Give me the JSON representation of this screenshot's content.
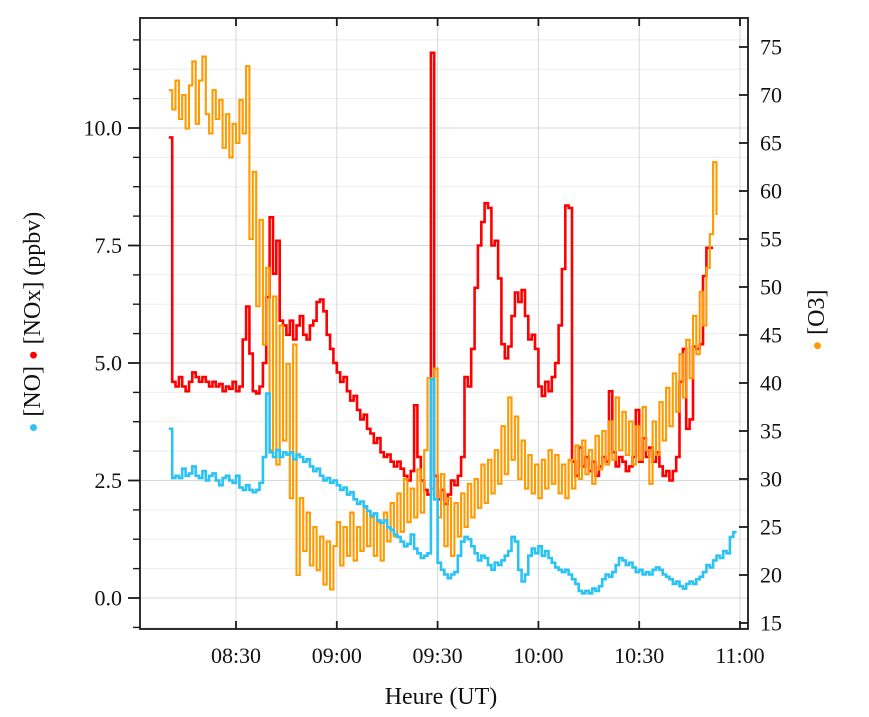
{
  "labels": {
    "xlabel": "Heure (UT)",
    "dot": "●",
    "left_no_part": " [NO] ",
    "left_nox_unit_part": " [NOx] (ppbv)",
    "right_o3_part": " [O3]"
  },
  "colors": {
    "no_cyan": "#2BC3F3",
    "nox_red": "#FF0000",
    "o3_orange": "#FF9A00",
    "grid_minor": "#EDEDED",
    "grid_major": "#D8D8D8",
    "frame": "#1A1A1A",
    "text": "#111111",
    "background": "#FFFFFF"
  },
  "chart_data": {
    "type": "line",
    "step_mode": "post",
    "title": "",
    "xlabel": "Heure (UT)",
    "ylabel_left": "[NO] [NOx] (ppbv)",
    "ylabel_right": "[O3]",
    "grid": true,
    "x_axis": {
      "range_minutes": [
        481.43,
        662.38
      ],
      "tick_minutes": [
        510,
        540,
        570,
        600,
        630,
        660
      ],
      "tick_labels": [
        "08:30",
        "09:00",
        "09:30",
        "10:00",
        "10:30",
        "11:00"
      ]
    },
    "left_axis": {
      "range": [
        -0.66,
        12.34
      ],
      "ticks": [
        0,
        2.5,
        5,
        7.5,
        10
      ],
      "tick_labels": [
        "0.0",
        "2.5",
        "5.0",
        "7.5",
        "10.0"
      ],
      "minor_step": 0.625
    },
    "right_axis": {
      "range": [
        14.375,
        78.02
      ],
      "ticks": [
        15,
        20,
        25,
        30,
        35,
        40,
        45,
        50,
        55,
        60,
        65,
        70,
        75
      ],
      "tick_labels": [
        "15",
        "20",
        "25",
        "30",
        "35",
        "40",
        "45",
        "50",
        "55",
        "60",
        "65",
        "70",
        "75"
      ]
    },
    "x_start": "08:10",
    "x_step_minutes": 1,
    "n_points": 169,
    "series": [
      {
        "name": "[NOx]",
        "axis": "left",
        "color": "#FF0000",
        "line_width": 2.6,
        "values": [
          9.8,
          4.6,
          4.5,
          4.7,
          4.5,
          4.4,
          4.6,
          4.8,
          4.7,
          4.6,
          4.7,
          4.6,
          4.5,
          4.6,
          4.5,
          4.55,
          4.4,
          4.5,
          4.45,
          4.6,
          4.4,
          4.5,
          5.5,
          6.2,
          5.2,
          4.4,
          4.35,
          4.5,
          5.0,
          6.4,
          8.1,
          6.9,
          7.6,
          5.9,
          5.8,
          5.6,
          5.9,
          5.5,
          5.8,
          6.0,
          5.6,
          5.5,
          5.8,
          5.9,
          6.3,
          6.35,
          6.1,
          5.6,
          5.3,
          5.0,
          4.8,
          4.6,
          4.7,
          4.4,
          4.2,
          4.3,
          4.0,
          3.8,
          3.9,
          3.6,
          3.5,
          3.3,
          3.4,
          3.1,
          3.0,
          3.05,
          2.9,
          2.8,
          2.9,
          2.75,
          2.6,
          2.5,
          2.7,
          4.1,
          3.0,
          2.5,
          2.3,
          2.2,
          11.6,
          2.6,
          2.1,
          2.3,
          2.0,
          2.2,
          2.5,
          2.4,
          2.6,
          3.0,
          4.7,
          4.5,
          5.3,
          6.6,
          7.5,
          8.0,
          8.4,
          8.3,
          7.5,
          7.6,
          6.8,
          5.4,
          5.1,
          5.35,
          6.0,
          6.5,
          6.3,
          6.55,
          6.0,
          5.5,
          5.6,
          5.3,
          4.5,
          4.3,
          4.6,
          4.4,
          4.7,
          5.0,
          5.8,
          7.0,
          8.35,
          8.3,
          2.9,
          2.6,
          3.2,
          2.8,
          3.0,
          2.7,
          2.9,
          2.6,
          2.8,
          3.0,
          2.9,
          4.4,
          3.1,
          2.8,
          3.0,
          2.9,
          2.7,
          2.8,
          3.0,
          4.0,
          2.9,
          3.4,
          3.0,
          3.2,
          2.9,
          3.1,
          2.8,
          2.6,
          2.7,
          2.5,
          2.7,
          3.0,
          4.6,
          5.3,
          3.6,
          3.8,
          5.35,
          5.3,
          5.4,
          6.85,
          7.45,
          7.45,
          7.45,
          null,
          null,
          null,
          null,
          null,
          null
        ]
      },
      {
        "name": "[O3]",
        "axis": "right",
        "color": "#FF9A00",
        "line_width": 2.1,
        "values": [
          70.5,
          68.5,
          71.5,
          67.5,
          70.0,
          66.5,
          71.0,
          73.5,
          67.0,
          71.5,
          74.0,
          68.0,
          66.0,
          70.5,
          67.5,
          69.5,
          64.5,
          68.0,
          63.5,
          67.0,
          65.0,
          69.5,
          66.0,
          73.0,
          55.0,
          62.0,
          48.0,
          57.0,
          44.0,
          52.0,
          33.0,
          49.0,
          31.5,
          46.0,
          34.0,
          42.0,
          28.0,
          44.0,
          20.0,
          28.0,
          22.5,
          26.5,
          21.0,
          25.0,
          20.5,
          24.0,
          19.0,
          23.5,
          18.5,
          23.0,
          25.5,
          21.0,
          25.0,
          22.0,
          26.5,
          21.5,
          25.0,
          22.5,
          27.0,
          23.0,
          26.0,
          22.0,
          25.5,
          21.5,
          26.5,
          23.5,
          27.5,
          24.0,
          28.5,
          24.5,
          30.0,
          25.5,
          29.0,
          26.0,
          31.0,
          26.5,
          33.0,
          40.5,
          29.0,
          41.5,
          26.0,
          30.5,
          23.0,
          28.0,
          22.0,
          27.5,
          24.0,
          28.5,
          25.0,
          29.5,
          26.0,
          30.0,
          27.0,
          31.5,
          27.5,
          32.0,
          28.5,
          33.0,
          29.5,
          35.5,
          30.5,
          38.5,
          32.0,
          36.5,
          30.0,
          34.0,
          29.0,
          32.5,
          28.5,
          31.5,
          28.0,
          32.0,
          29.0,
          33.0,
          29.5,
          32.5,
          28.5,
          31.5,
          28.0,
          32.0,
          29.0,
          33.5,
          30.0,
          34.0,
          30.5,
          33.0,
          29.5,
          34.5,
          31.0,
          35.0,
          31.5,
          36.0,
          32.0,
          38.5,
          33.0,
          37.0,
          32.5,
          36.0,
          31.5,
          35.5,
          32.0,
          37.5,
          33.0,
          29.5,
          36.0,
          32.5,
          38.0,
          34.0,
          39.5,
          35.5,
          41.0,
          37.0,
          43.0,
          38.5,
          44.5,
          40.5,
          47.0,
          43.0,
          49.5,
          46.0,
          52.0,
          55.5,
          63.0,
          57.5,
          null,
          null,
          null,
          null,
          null
        ]
      },
      {
        "name": "[NO]",
        "axis": "left",
        "color": "#2BC3F3",
        "line_width": 2.6,
        "values": [
          3.6,
          2.55,
          2.6,
          2.55,
          2.75,
          2.6,
          2.65,
          2.8,
          2.6,
          2.55,
          2.7,
          2.5,
          2.6,
          2.65,
          2.5,
          2.4,
          2.55,
          2.6,
          2.5,
          2.45,
          2.6,
          2.35,
          2.3,
          2.4,
          2.3,
          2.25,
          2.3,
          2.45,
          3.0,
          4.35,
          3.1,
          3.0,
          3.15,
          3.0,
          3.1,
          3.05,
          3.1,
          2.95,
          3.05,
          3.0,
          2.9,
          2.95,
          2.8,
          2.7,
          2.75,
          2.6,
          2.5,
          2.55,
          2.45,
          2.5,
          2.4,
          2.3,
          2.35,
          2.2,
          2.25,
          2.1,
          2.0,
          2.05,
          1.95,
          1.85,
          1.75,
          1.8,
          1.65,
          1.6,
          1.65,
          1.5,
          1.45,
          1.35,
          1.3,
          1.2,
          1.1,
          1.15,
          1.35,
          1.05,
          0.95,
          0.85,
          0.9,
          0.95,
          4.65,
          2.1,
          0.75,
          0.6,
          0.5,
          0.42,
          0.5,
          0.55,
          0.9,
          1.2,
          1.3,
          1.25,
          1.1,
          0.95,
          0.8,
          0.9,
          0.85,
          0.7,
          0.6,
          0.75,
          0.7,
          0.8,
          0.9,
          1.0,
          1.3,
          1.2,
          0.6,
          0.35,
          0.5,
          0.9,
          1.05,
          0.95,
          1.1,
          0.9,
          1.0,
          0.85,
          0.75,
          0.65,
          0.6,
          0.55,
          0.6,
          0.5,
          0.4,
          0.3,
          0.15,
          0.1,
          0.15,
          0.1,
          0.2,
          0.15,
          0.25,
          0.4,
          0.5,
          0.45,
          0.55,
          0.7,
          0.85,
          0.8,
          0.7,
          0.75,
          0.65,
          0.55,
          0.6,
          0.5,
          0.55,
          0.5,
          0.6,
          0.65,
          0.6,
          0.5,
          0.45,
          0.4,
          0.3,
          0.35,
          0.25,
          0.2,
          0.3,
          0.35,
          0.3,
          0.4,
          0.45,
          0.55,
          0.7,
          0.65,
          0.8,
          0.9,
          0.85,
          1.0,
          0.95,
          1.3,
          1.4
        ]
      }
    ],
    "legend": {
      "left_label_reading_bottom_to_top": "● [NO] ● [NOx] (ppbv)",
      "right_label_reading_bottom_to_top": "● [O3]"
    }
  }
}
